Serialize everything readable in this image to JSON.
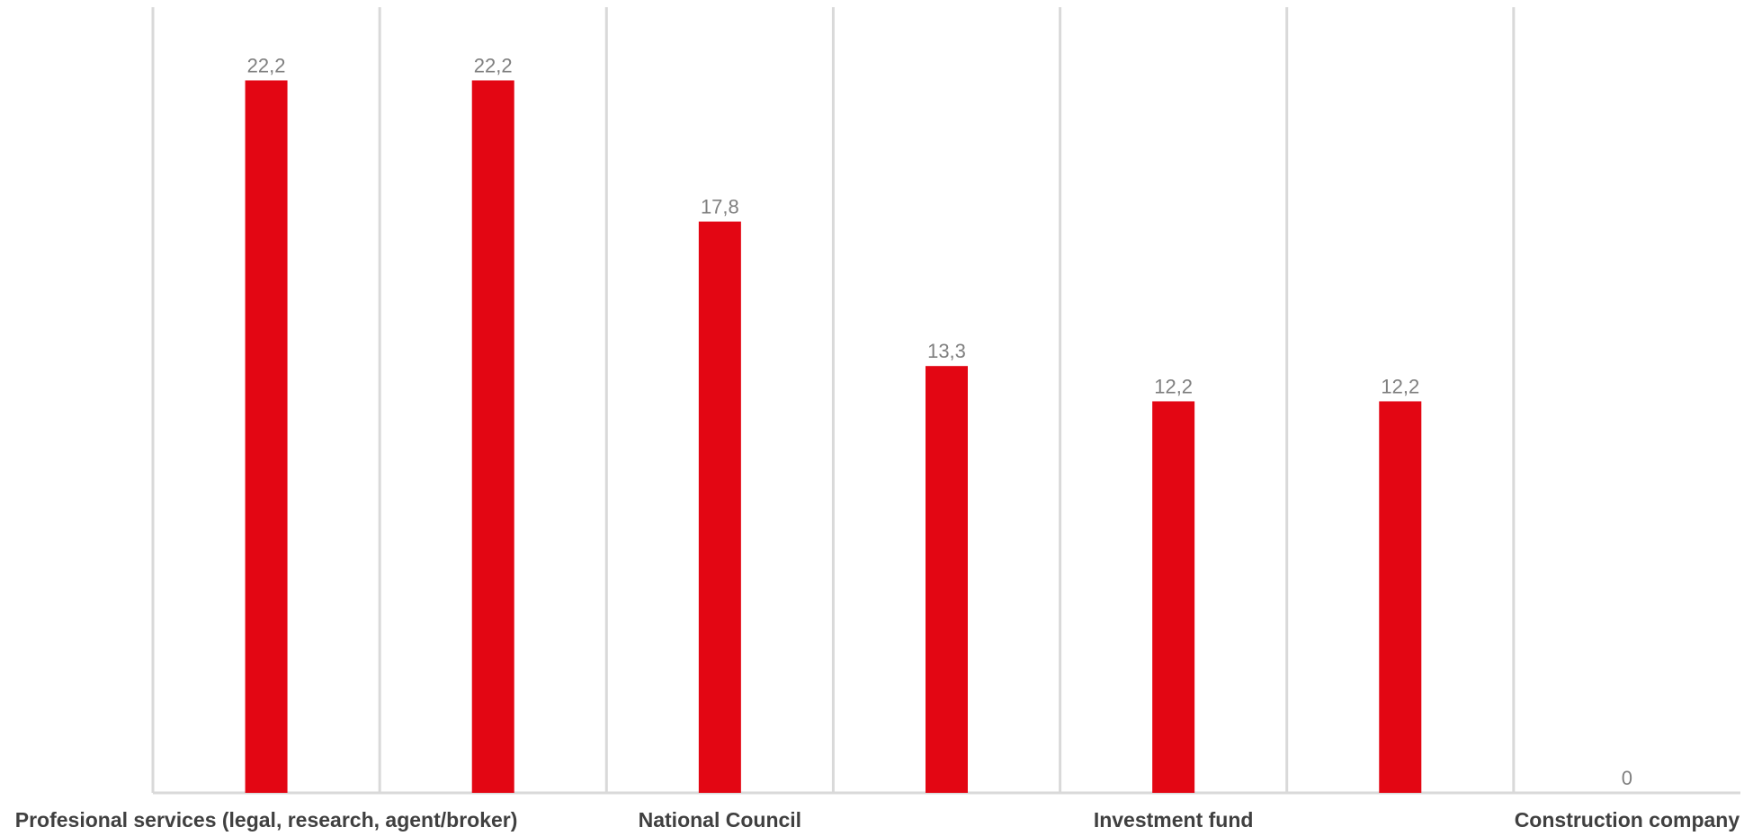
{
  "chart_data": {
    "type": "bar",
    "categories": [
      "Profesional services (legal, research, agent/broker)",
      "",
      "National Council",
      "",
      "Investment fund",
      "",
      "Construction company"
    ],
    "values": [
      22.2,
      22.2,
      17.8,
      13.3,
      12.2,
      12.2,
      0
    ],
    "data_labels": [
      "22,2",
      "22,2",
      "17,8",
      "13,3",
      "12,2",
      "12,2",
      "0"
    ],
    "ylim": [
      0,
      30
    ],
    "grid": "vertical category separators",
    "legend": "none",
    "title": "",
    "xlabel": "",
    "ylabel": "",
    "colors": {
      "bar": "#e30613",
      "grid": "#d9d9d9",
      "data_label": "#7f7f7f",
      "category_label": "#404040"
    }
  }
}
